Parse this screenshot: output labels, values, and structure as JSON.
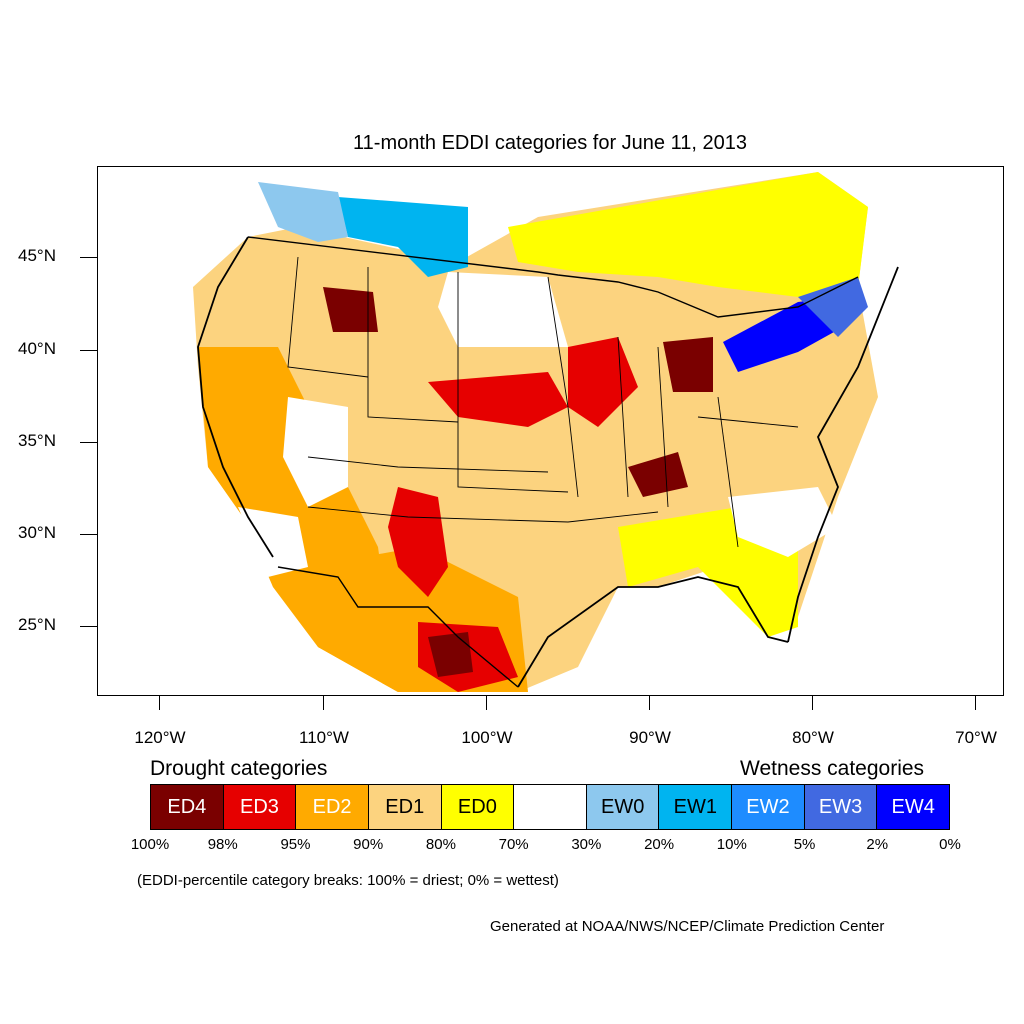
{
  "title": "11-month EDDI categories for June 11, 2013",
  "lat_labels": [
    "45°N",
    "40°N",
    "35°N",
    "30°N",
    "25°N"
  ],
  "lon_labels": [
    "120°W",
    "110°W",
    "100°W",
    "90°W",
    "80°W",
    "70°W"
  ],
  "legend": {
    "drought_title": "Drought categories",
    "wetness_title": "Wetness categories",
    "categories": [
      {
        "label": "ED4",
        "color": "#7a0000",
        "text_color": "#ffffff"
      },
      {
        "label": "ED3",
        "color": "#e60000",
        "text_color": "#ffffff"
      },
      {
        "label": "ED2",
        "color": "#ffaa00",
        "text_color": "#ffffff"
      },
      {
        "label": "ED1",
        "color": "#fcd37f",
        "text_color": "#000000"
      },
      {
        "label": "ED0",
        "color": "#ffff00",
        "text_color": "#000000"
      },
      {
        "label": "",
        "color": "#ffffff",
        "text_color": "#000000"
      },
      {
        "label": "EW0",
        "color": "#8dc8ee",
        "text_color": "#000000"
      },
      {
        "label": "EW1",
        "color": "#00b4f0",
        "text_color": "#000000"
      },
      {
        "label": "EW2",
        "color": "#1e8cff",
        "text_color": "#ffffff"
      },
      {
        "label": "EW3",
        "color": "#4169e1",
        "text_color": "#ffffff"
      },
      {
        "label": "EW4",
        "color": "#0000ff",
        "text_color": "#ffffff"
      }
    ],
    "percent_breaks": [
      "100%",
      "98%",
      "95%",
      "90%",
      "80%",
      "70%",
      "30%",
      "20%",
      "10%",
      "5%",
      "2%",
      "0%"
    ]
  },
  "note": "(EDDI-percentile category breaks: 100% = driest; 0% = wettest)",
  "credit": "Generated at NOAA/NWS/NCEP/Climate Prediction Center"
}
